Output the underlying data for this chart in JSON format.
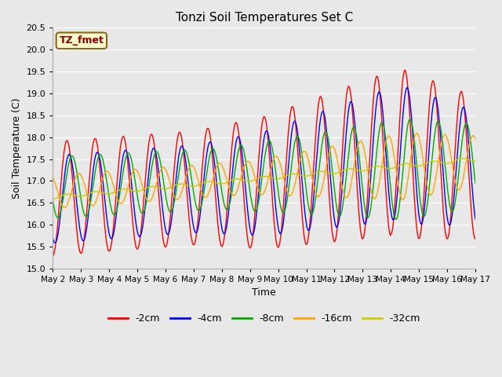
{
  "title": "Tonzi Soil Temperatures Set C",
  "xlabel": "Time",
  "ylabel": "Soil Temperature (C)",
  "ylim": [
    15.0,
    20.5
  ],
  "annotation": "TZ_fmet",
  "annotation_color": "#8B0000",
  "annotation_bg": "#FFFACD",
  "colors": {
    "-2cm": "#FF0000",
    "-4cm": "#0000FF",
    "-8cm": "#00AA00",
    "-16cm": "#FFA500",
    "-32cm": "#CCCC00"
  },
  "bg_color": "#E8E8E8",
  "plot_bg": "#E8E8E8",
  "grid_color": "#FFFFFF",
  "n_points": 721,
  "x_start": 2.0,
  "x_end": 17.0,
  "xtick_labels": [
    "May 2",
    "May 3",
    "May 4",
    "May 5",
    "May 6",
    "May 7",
    "May 8",
    "May 9",
    "May 10",
    "May 11",
    "May 12",
    "May 13",
    "May 14",
    "May 15",
    "May 16",
    "May 17"
  ],
  "xtick_positions": [
    2,
    3,
    4,
    5,
    6,
    7,
    8,
    9,
    10,
    11,
    12,
    13,
    14,
    15,
    16,
    17
  ]
}
